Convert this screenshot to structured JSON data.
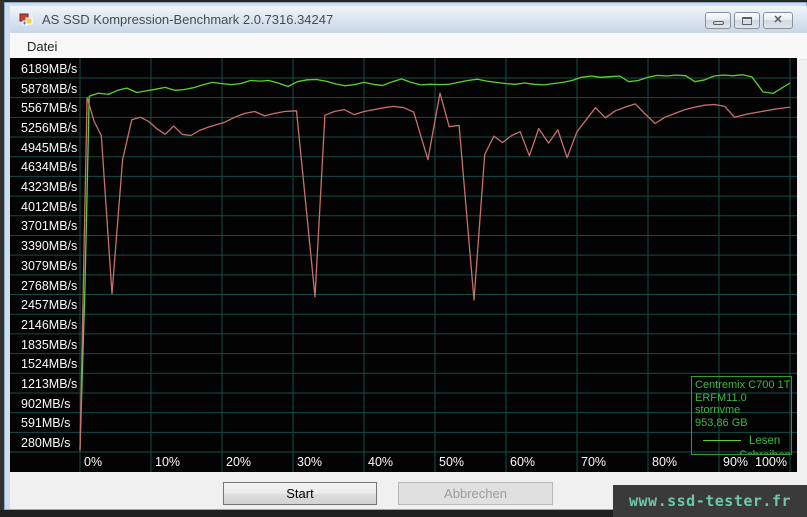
{
  "window": {
    "title": "AS SSD Kompression-Benchmark 2.0.7316.34247",
    "controls": [
      {
        "name": "minimize"
      },
      {
        "name": "maximize"
      },
      {
        "name": "close"
      }
    ]
  },
  "menu": {
    "items": [
      {
        "label": "Datei"
      }
    ]
  },
  "chart_data": {
    "type": "line",
    "title": "",
    "xlabel": "",
    "ylabel": "",
    "x_unit": "percent compressibility",
    "y_unit": "MB/s",
    "x_axis": {
      "min": 0,
      "max": 100,
      "step": 10
    },
    "y_axis": {
      "min": 280,
      "max": 6189,
      "step": 311
    },
    "x_ticks": [
      "0%",
      "10%",
      "20%",
      "30%",
      "40%",
      "50%",
      "60%",
      "70%",
      "80%",
      "90%",
      "100%"
    ],
    "y_ticks": [
      "6189MB/s",
      "5878MB/s",
      "5567MB/s",
      "5256MB/s",
      "4945MB/s",
      "4634MB/s",
      "4323MB/s",
      "4012MB/s",
      "3701MB/s",
      "3390MB/s",
      "3079MB/s",
      "2768MB/s",
      "2457MB/s",
      "2146MB/s",
      "1835MB/s",
      "1524MB/s",
      "1213MB/s",
      "902MB/s",
      "591MB/s",
      "280MB/s"
    ],
    "grid": true,
    "colors": {
      "background": "#030303",
      "grid": "#144b46",
      "tick_text": "#fafafa",
      "legend_text": "#3db83d",
      "legend_border": "#2f9e2f"
    },
    "legend": {
      "position": "bottom-right",
      "device": "Centremix C700 1T",
      "firmware": "ERFM11.0",
      "driver": "stornvme",
      "capacity": "953,86 GB",
      "entries": [
        {
          "label": "Lesen",
          "color": "#5dd02e"
        },
        {
          "label": "Schreiben",
          "color": "#c96f6f"
        }
      ]
    },
    "series": [
      {
        "name": "Lesen",
        "color": "#5dd02e",
        "points": [
          [
            0,
            320
          ],
          [
            0.7,
            2900
          ],
          [
            1.3,
            5900
          ],
          [
            2.6,
            5950
          ],
          [
            4,
            5930
          ],
          [
            5.3,
            5995
          ],
          [
            6.6,
            6030
          ],
          [
            8,
            5960
          ],
          [
            9.3,
            5985
          ],
          [
            10.6,
            6010
          ],
          [
            12,
            6040
          ],
          [
            13.3,
            5995
          ],
          [
            14.6,
            6005
          ],
          [
            16,
            6035
          ],
          [
            17.3,
            6080
          ],
          [
            18.6,
            6120
          ],
          [
            20,
            6100
          ],
          [
            21.3,
            6085
          ],
          [
            22.6,
            6100
          ],
          [
            24,
            6150
          ],
          [
            25.3,
            6140
          ],
          [
            26.6,
            6150
          ],
          [
            28,
            6105
          ],
          [
            29.3,
            6055
          ],
          [
            30.6,
            6130
          ],
          [
            32,
            6160
          ],
          [
            33.3,
            6165
          ],
          [
            34.6,
            6140
          ],
          [
            36,
            6095
          ],
          [
            37.3,
            6065
          ],
          [
            38.6,
            6085
          ],
          [
            40,
            6120
          ],
          [
            41.3,
            6090
          ],
          [
            42.6,
            6070
          ],
          [
            44,
            6130
          ],
          [
            45.3,
            6175
          ],
          [
            46.6,
            6120
          ],
          [
            48,
            6080
          ],
          [
            49.3,
            6090
          ],
          [
            50.6,
            6085
          ],
          [
            52,
            6090
          ],
          [
            53.3,
            6120
          ],
          [
            54.6,
            6150
          ],
          [
            56,
            6170
          ],
          [
            57.3,
            6140
          ],
          [
            58.6,
            6120
          ],
          [
            60,
            6100
          ],
          [
            61.3,
            6090
          ],
          [
            62.6,
            6110
          ],
          [
            64,
            6090
          ],
          [
            65.3,
            6080
          ],
          [
            66.6,
            6100
          ],
          [
            68,
            6120
          ],
          [
            69.3,
            6150
          ],
          [
            70.6,
            6200
          ],
          [
            72,
            6220
          ],
          [
            73.3,
            6200
          ],
          [
            74.6,
            6210
          ],
          [
            76,
            6220
          ],
          [
            77.3,
            6130
          ],
          [
            78.6,
            6150
          ],
          [
            80,
            6200
          ],
          [
            81.3,
            6230
          ],
          [
            82.6,
            6220
          ],
          [
            84,
            6235
          ],
          [
            85.3,
            6225
          ],
          [
            86.6,
            6130
          ],
          [
            88,
            6160
          ],
          [
            89.3,
            6220
          ],
          [
            90.6,
            6235
          ],
          [
            92,
            6225
          ],
          [
            93.3,
            6240
          ],
          [
            94.6,
            6210
          ],
          [
            96.2,
            5970
          ],
          [
            97.6,
            5945
          ],
          [
            100,
            6110
          ]
        ]
      },
      {
        "name": "Schreiben",
        "color": "#c96f6f",
        "points": [
          [
            0,
            300
          ],
          [
            1,
            5880
          ],
          [
            2,
            5500
          ],
          [
            3,
            5280
          ],
          [
            4.5,
            2780
          ],
          [
            6,
            4900
          ],
          [
            7.3,
            5530
          ],
          [
            8.5,
            5570
          ],
          [
            9.7,
            5500
          ],
          [
            10.8,
            5390
          ],
          [
            12,
            5300
          ],
          [
            13.2,
            5430
          ],
          [
            14.4,
            5300
          ],
          [
            15.6,
            5280
          ],
          [
            16.8,
            5360
          ],
          [
            18,
            5410
          ],
          [
            19.2,
            5450
          ],
          [
            20.4,
            5490
          ],
          [
            21.8,
            5570
          ],
          [
            23.2,
            5630
          ],
          [
            24.6,
            5660
          ],
          [
            26,
            5590
          ],
          [
            27.4,
            5630
          ],
          [
            28.8,
            5660
          ],
          [
            30.5,
            5670
          ],
          [
            33.1,
            2730
          ],
          [
            34.5,
            5600
          ],
          [
            35.8,
            5660
          ],
          [
            37.2,
            5690
          ],
          [
            38.6,
            5610
          ],
          [
            40,
            5660
          ],
          [
            41.4,
            5690
          ],
          [
            42.8,
            5720
          ],
          [
            44.2,
            5740
          ],
          [
            45.6,
            5720
          ],
          [
            47,
            5650
          ],
          [
            49,
            4900
          ],
          [
            50.7,
            5950
          ],
          [
            52,
            5420
          ],
          [
            53.4,
            5440
          ],
          [
            55.5,
            2680
          ],
          [
            57,
            4980
          ],
          [
            58.3,
            5270
          ],
          [
            59.5,
            5170
          ],
          [
            60.8,
            5280
          ],
          [
            62,
            5340
          ],
          [
            63.3,
            4960
          ],
          [
            64.6,
            5390
          ],
          [
            66,
            5160
          ],
          [
            67.3,
            5370
          ],
          [
            68.6,
            4930
          ],
          [
            70,
            5340
          ],
          [
            71.3,
            5530
          ],
          [
            72.6,
            5720
          ],
          [
            74,
            5560
          ],
          [
            75.4,
            5670
          ],
          [
            76.8,
            5730
          ],
          [
            78.2,
            5780
          ],
          [
            79.6,
            5620
          ],
          [
            81,
            5470
          ],
          [
            82.4,
            5570
          ],
          [
            83.8,
            5630
          ],
          [
            85.2,
            5690
          ],
          [
            86.6,
            5730
          ],
          [
            88,
            5760
          ],
          [
            89.4,
            5770
          ],
          [
            90.8,
            5740
          ],
          [
            92.2,
            5570
          ],
          [
            94,
            5620
          ],
          [
            96,
            5660
          ],
          [
            98,
            5700
          ],
          [
            100,
            5730
          ]
        ]
      }
    ]
  },
  "buttons": {
    "start": "Start",
    "cancel": "Abbrechen"
  },
  "watermark": "www.ssd-tester.fr"
}
